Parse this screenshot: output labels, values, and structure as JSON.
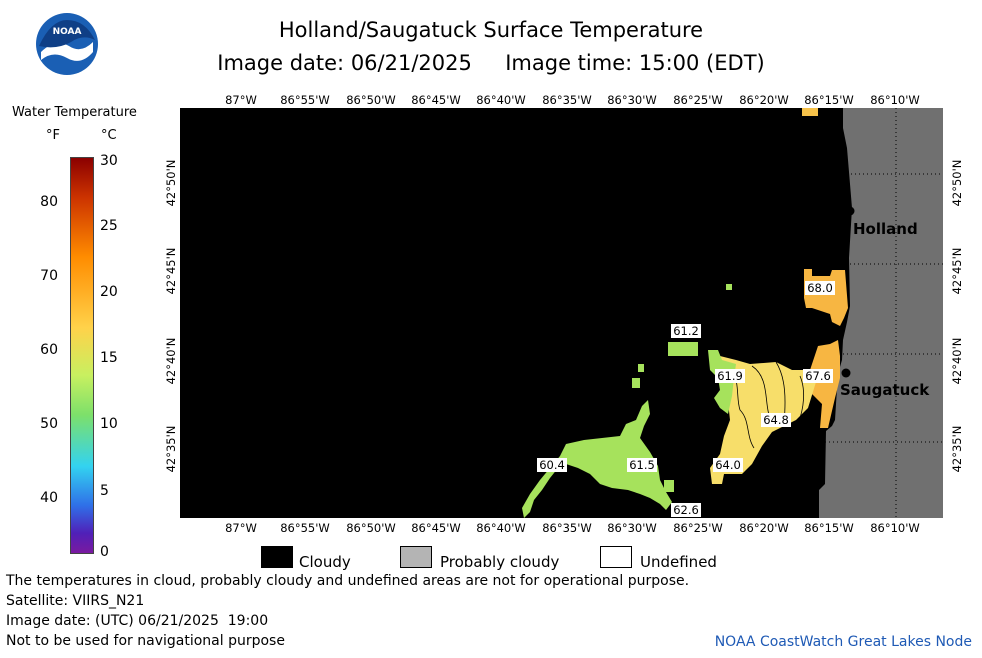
{
  "header": {
    "title": "Holland/Saugatuck Surface Temperature",
    "subtitle": "Image date: 06/21/2025     Image time: 15:00 (EDT)"
  },
  "logo": {
    "text": "NOAA"
  },
  "legend": {
    "title": "Water Temperature",
    "unit_f": "°F",
    "unit_c": "°C",
    "f_ticks": [
      "80",
      "70",
      "60",
      "50",
      "40"
    ],
    "c_ticks": [
      "30",
      "25",
      "20",
      "15",
      "10",
      "5",
      "0"
    ]
  },
  "map": {
    "lon_labels": [
      "87°W",
      "86°55'W",
      "86°50'W",
      "86°45'W",
      "86°40'W",
      "86°35'W",
      "86°30'W",
      "86°25'W",
      "86°20'W",
      "86°15'W",
      "86°10'W"
    ],
    "lat_labels": [
      "42°50'N",
      "42°45'N",
      "42°40'N",
      "42°35'N"
    ],
    "cities": [
      {
        "name": "Holland"
      },
      {
        "name": "Saugatuck"
      }
    ],
    "temp_labels": [
      "68.0",
      "61.2",
      "61.9",
      "67.6",
      "64.8",
      "64.0",
      "60.4",
      "61.5",
      "62.6"
    ],
    "colors": {
      "cloudy": "#000000",
      "land": "#707070",
      "probably_cloudy": "#b4b4b4",
      "undefined": "#ffffff"
    }
  },
  "key": {
    "cloudy": "Cloudy",
    "probably_cloudy": "Probably cloudy",
    "undefined": "Undefined"
  },
  "footer": {
    "line1": "The temperatures in cloud, probably cloudy and undefined areas are not for operational purpose.",
    "line2": "Satellite: VIIRS_N21",
    "line3": "Image date: (UTC) 06/21/2025  19:00",
    "line4": "Not to be used for navigational purpose",
    "credit": "NOAA CoastWatch Great Lakes Node"
  }
}
